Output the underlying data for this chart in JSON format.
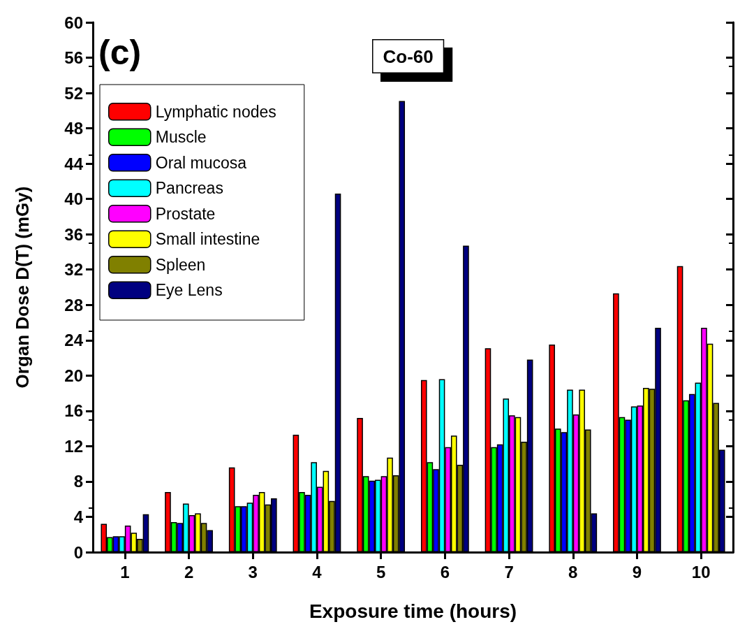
{
  "chart_data": {
    "type": "bar",
    "xlabel": "Exposure time (hours)",
    "ylabel": "Organ Dose D(T) (mGy)",
    "annotations": [
      "(c)",
      "Co-60"
    ],
    "categories": [
      "1",
      "2",
      "3",
      "4",
      "5",
      "6",
      "7",
      "8",
      "9",
      "10"
    ],
    "series": [
      {
        "name": "Lymphatic nodes",
        "color": "#ff0000",
        "values": [
          3.2,
          6.8,
          9.6,
          13.3,
          15.2,
          19.5,
          23.1,
          23.5,
          29.3,
          32.4
        ]
      },
      {
        "name": "Muscle",
        "color": "#00ff00",
        "values": [
          1.7,
          3.4,
          5.2,
          6.8,
          8.6,
          10.2,
          11.9,
          14.0,
          15.3,
          17.2
        ]
      },
      {
        "name": "Oral mucosa",
        "color": "#0000ff",
        "values": [
          1.8,
          3.3,
          5.2,
          6.5,
          8.1,
          9.4,
          12.2,
          13.6,
          15.0,
          17.9
        ]
      },
      {
        "name": "Pancreas",
        "color": "#00ffff",
        "values": [
          1.8,
          5.5,
          5.6,
          10.2,
          8.2,
          19.6,
          17.4,
          18.4,
          16.5,
          19.2
        ]
      },
      {
        "name": "Prostate",
        "color": "#ff00ff",
        "values": [
          3.0,
          4.2,
          6.5,
          7.4,
          8.6,
          11.9,
          15.5,
          15.6,
          16.6,
          25.4
        ]
      },
      {
        "name": "Small intestine",
        "color": "#ffff00",
        "values": [
          2.2,
          4.4,
          6.8,
          9.2,
          10.7,
          13.2,
          15.3,
          18.4,
          18.6,
          23.6
        ]
      },
      {
        "name": "Spleen",
        "color": "#808000",
        "values": [
          1.5,
          3.3,
          5.4,
          5.8,
          8.7,
          9.9,
          12.5,
          13.9,
          18.5,
          16.9
        ]
      },
      {
        "name": "Eye Lens",
        "color": "#000080",
        "values": [
          4.3,
          2.5,
          6.1,
          40.6,
          51.1,
          34.7,
          21.8,
          4.4,
          25.4,
          11.6
        ]
      }
    ],
    "ylim": [
      0,
      60
    ],
    "yticks": [
      0,
      4,
      8,
      12,
      16,
      20,
      24,
      28,
      32,
      36,
      40,
      44,
      48,
      52,
      56,
      60
    ],
    "grid": false,
    "legend": "top left"
  }
}
